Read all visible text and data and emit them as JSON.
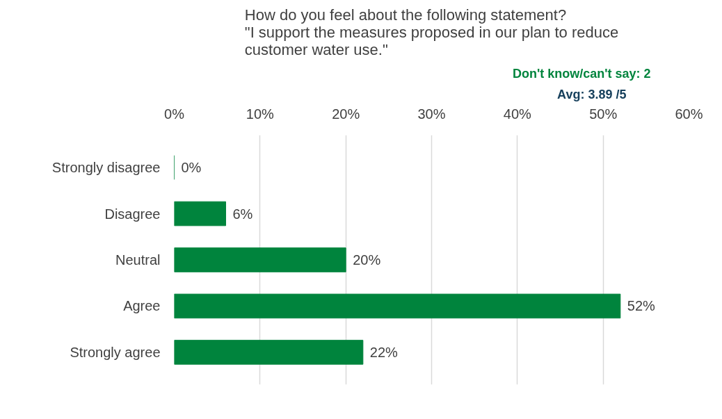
{
  "chart_data": {
    "type": "bar",
    "orientation": "horizontal",
    "title": "How do you feel about the following statement?\n\"I support the measures proposed in our plan to reduce\ncustomer water use.\"",
    "annotations": [
      "Don't know/can't say: 2",
      "Avg: 3.89 /5"
    ],
    "categories": [
      "Strongly disagree",
      "Disagree",
      "Neutral",
      "Agree",
      "Strongly agree"
    ],
    "values": [
      0,
      6,
      20,
      52,
      22
    ],
    "value_labels": [
      "0%",
      "6%",
      "20%",
      "52%",
      "22%"
    ],
    "color": "#00843d",
    "xlim": [
      0,
      60
    ],
    "xticks": [
      {
        "value": 0,
        "label": "0%"
      },
      {
        "value": 10,
        "label": "10%"
      },
      {
        "value": 20,
        "label": "20%"
      },
      {
        "value": 30,
        "label": "30%"
      },
      {
        "value": 40,
        "label": "40%"
      },
      {
        "value": 50,
        "label": "50%"
      },
      {
        "value": 60,
        "label": "60%"
      }
    ],
    "grid": "x"
  }
}
